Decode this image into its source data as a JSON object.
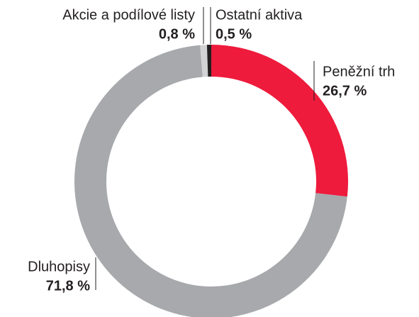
{
  "chart_data": {
    "type": "donut",
    "categories": [
      "Peněžní trh",
      "Dluhopisy",
      "Akcie a podílové listy",
      "Ostatní aktiva"
    ],
    "values": [
      26.7,
      71.8,
      0.8,
      0.5
    ],
    "value_labels": [
      "26,7 %",
      "71,8 %",
      "0,8 %",
      "0,5 %"
    ],
    "colors": [
      "#ee1b3c",
      "#a7a9ac",
      "#d1d3d4",
      "#231f20"
    ]
  }
}
